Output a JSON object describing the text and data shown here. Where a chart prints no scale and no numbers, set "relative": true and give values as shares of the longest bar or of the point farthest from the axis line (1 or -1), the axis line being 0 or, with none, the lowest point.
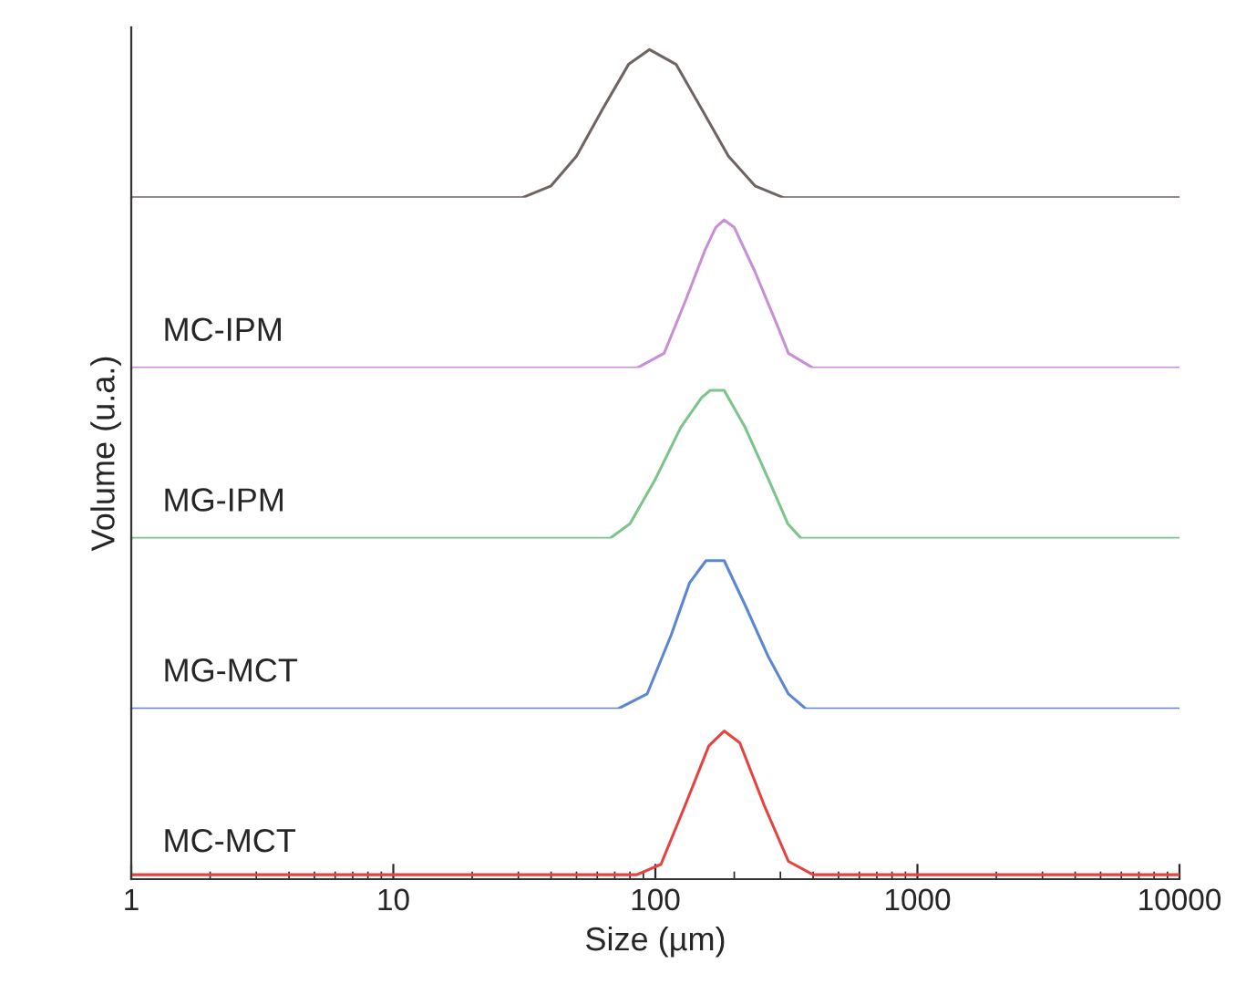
{
  "chart_data": [
    {
      "type": "line",
      "relative": true,
      "log": "x",
      "xlim": [
        1,
        10000
      ],
      "xticks": [
        1,
        10,
        100,
        1000,
        10000
      ],
      "tick_labels": false,
      "series": [
        {
          "color": "#6e6462",
          "x": [
            1,
            31,
            40,
            50,
            63,
            79,
            95,
            120,
            150,
            190,
            240,
            309,
            10000
          ],
          "values": [
            0,
            0,
            0.08,
            0.28,
            0.6,
            0.9,
            1,
            0.9,
            0.6,
            0.28,
            0.08,
            0,
            0
          ]
        }
      ]
    },
    {
      "type": "line",
      "relative": true,
      "log": "x",
      "xlim": [
        1,
        10000
      ],
      "xticks": [
        1,
        10,
        100,
        1000,
        10000
      ],
      "tick_labels": false,
      "series": [
        {
          "name": "MC-IPM",
          "color": "#c98fd6",
          "x": [
            1,
            85,
            108,
            130,
            155,
            170,
            183,
            200,
            240,
            290,
            322,
            400,
            10000
          ],
          "values": [
            0,
            0,
            0.1,
            0.45,
            0.8,
            0.95,
            1,
            0.95,
            0.65,
            0.3,
            0.1,
            0,
            0
          ]
        }
      ]
    },
    {
      "type": "line",
      "relative": true,
      "log": "x",
      "xlim": [
        1,
        10000
      ],
      "xticks": [
        1,
        10,
        100,
        1000,
        10000
      ],
      "tick_labels": false,
      "ylabel": "Volume (u.a.)",
      "series": [
        {
          "name": "MG-IPM",
          "color": "#7cc48a",
          "x": [
            1,
            67,
            80,
            100,
            125,
            150,
            162,
            183,
            220,
            270,
            320,
            360,
            10000
          ],
          "values": [
            0,
            0,
            0.1,
            0.4,
            0.75,
            0.95,
            1,
            1,
            0.75,
            0.4,
            0.1,
            0,
            0
          ]
        }
      ]
    },
    {
      "type": "line",
      "relative": true,
      "log": "x",
      "xlim": [
        1,
        10000
      ],
      "xticks": [
        1,
        10,
        100,
        1000,
        10000
      ],
      "tick_labels": false,
      "series": [
        {
          "name": "MG-MCT",
          "color": "#5b86d6",
          "x": [
            1,
            72,
            93,
            115,
            135,
            156,
            183,
            220,
            270,
            322,
            375,
            10000
          ],
          "values": [
            0,
            0,
            0.1,
            0.5,
            0.85,
            1,
            1,
            0.7,
            0.35,
            0.1,
            0,
            0
          ]
        }
      ]
    },
    {
      "type": "line",
      "relative": true,
      "log": "x",
      "xlim": [
        1,
        10000
      ],
      "xticks": [
        1,
        10,
        100,
        1000,
        10000
      ],
      "tick_labels": "x",
      "xlabel": "Size (µm)",
      "series": [
        {
          "name": "MC-MCT",
          "color": "#e8423f",
          "x": [
            1,
            85,
            105,
            130,
            160,
            183,
            210,
            260,
            322,
            400,
            10000
          ],
          "values": [
            0.03,
            0.03,
            0.1,
            0.5,
            0.9,
            1,
            0.92,
            0.5,
            0.12,
            0.03,
            0.03
          ]
        }
      ]
    }
  ]
}
